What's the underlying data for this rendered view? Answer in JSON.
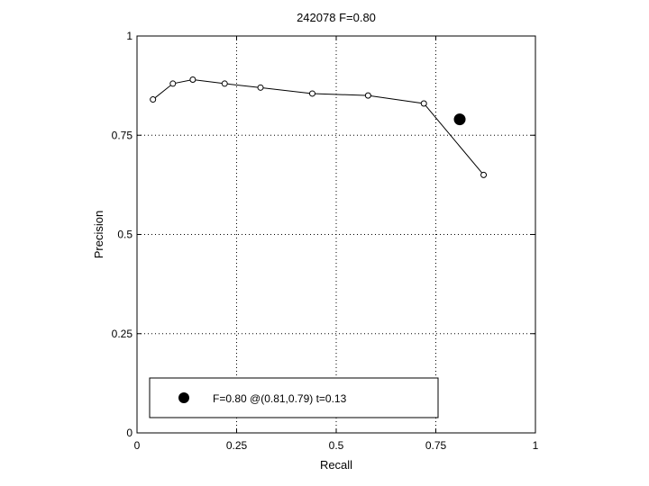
{
  "chart_data": {
    "type": "line",
    "title": "242078 F=0.80",
    "xlabel": "Recall",
    "ylabel": "Precision",
    "xlim": [
      0,
      1
    ],
    "ylim": [
      0,
      1
    ],
    "grid": true,
    "x_ticks": [
      0,
      0.25,
      0.5,
      0.75,
      1
    ],
    "x_tick_labels": [
      "0",
      "0.25",
      "0.5",
      "0.75",
      "1"
    ],
    "y_ticks": [
      0,
      0.25,
      0.5,
      0.75,
      1
    ],
    "y_tick_labels": [
      "0",
      "0.25",
      "0.5",
      "0.75",
      "1"
    ],
    "series": [
      {
        "marker": "open-circle",
        "color": "#000000",
        "x": [
          0.04,
          0.09,
          0.14,
          0.22,
          0.31,
          0.44,
          0.58,
          0.72,
          0.87
        ],
        "y": [
          0.84,
          0.88,
          0.89,
          0.88,
          0.87,
          0.855,
          0.85,
          0.83,
          0.65
        ]
      }
    ],
    "best_point": {
      "x": 0.81,
      "y": 0.79,
      "color": "#000000"
    },
    "legend": {
      "position": "bottom-left",
      "text": "F=0.80 @(0.81,0.79) t=0.13"
    }
  }
}
